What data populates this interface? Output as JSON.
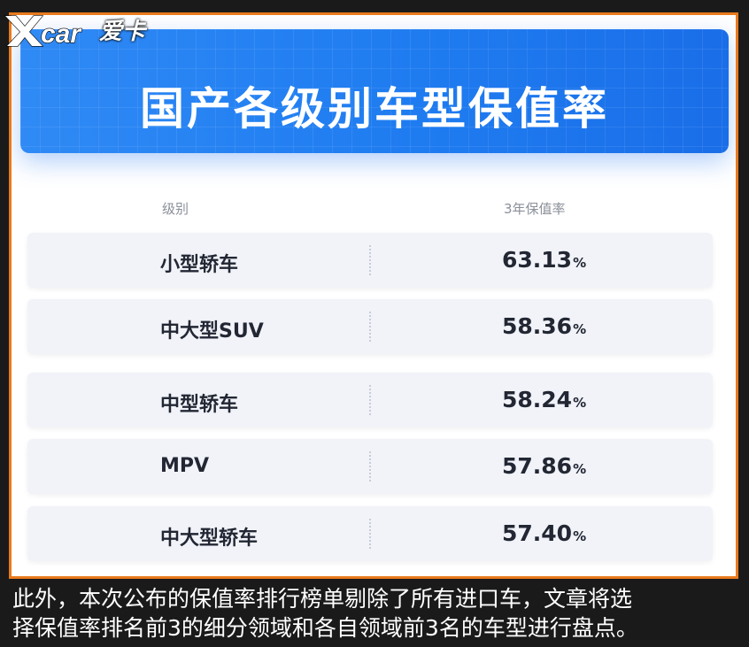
{
  "logo": {
    "brand": "爱卡"
  },
  "banner": {
    "title": "国产各级别车型保值率"
  },
  "table": {
    "headers": {
      "level": "级别",
      "rate": "3年保值率"
    },
    "rows": [
      {
        "name": "小型轿车",
        "value": "63.13",
        "unit": "%"
      },
      {
        "name": "中大型SUV",
        "value": "58.36",
        "unit": "%"
      },
      {
        "name": "中型轿车",
        "value": "58.24",
        "unit": "%"
      },
      {
        "name": "MPV",
        "value": "57.86",
        "unit": "%"
      },
      {
        "name": "中大型轿车",
        "value": "57.40",
        "unit": "%"
      }
    ]
  },
  "caption": {
    "line1": "此外，本次公布的保值率排行榜单剔除了所有进口车，文章将选",
    "line2": "择保值率排名前3的细分领域和各自领域前3名的车型进行盘点。"
  },
  "colors": {
    "frame": "#e87a1c",
    "banner": "#1f7cf0",
    "row_bg": "#f1f3f9"
  }
}
